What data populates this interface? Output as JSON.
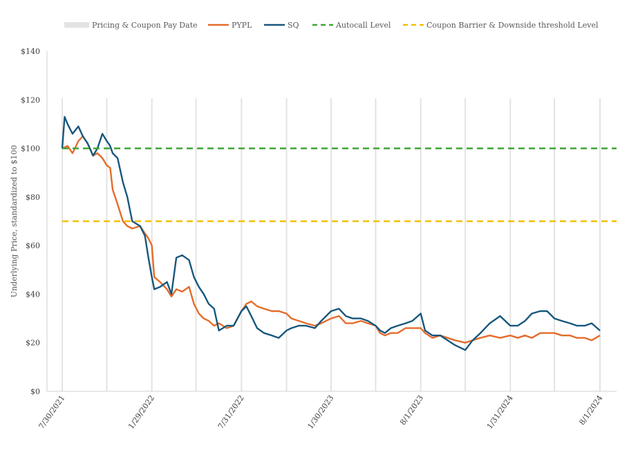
{
  "chart_data": {
    "type": "line",
    "ylabel": "Underlying Price, standardized to $100",
    "ylim": [
      0,
      140
    ],
    "y_ticks": [
      "$0",
      "$20",
      "$40",
      "$60",
      "$80",
      "$100",
      "$120",
      "$140"
    ],
    "x_tick_labels": [
      "7/30/2021",
      "1/29/2022",
      "7/31/2022",
      "1/30/2023",
      "8/1/2023",
      "1/31/2024",
      "8/1/2024"
    ],
    "pricing_coupon_dates": [
      "2021-07-30",
      "2021-10-29",
      "2022-01-29",
      "2022-04-29",
      "2022-07-31",
      "2022-10-31",
      "2023-01-30",
      "2023-05-01",
      "2023-08-01",
      "2023-10-31",
      "2024-01-31",
      "2024-04-30",
      "2024-08-01"
    ],
    "legend": [
      {
        "label": "Pricing & Coupon Pay Date",
        "color": "#e3e3e3",
        "style": "bar"
      },
      {
        "label": "PYPL",
        "color": "#e46c2b",
        "style": "solid"
      },
      {
        "label": "SQ",
        "color": "#17577d",
        "style": "solid"
      },
      {
        "label": "Autocall Level",
        "color": "#3fa535",
        "style": "dashed"
      },
      {
        "label": "Coupon Barrier & Downside threshold Level",
        "color": "#f2c000",
        "style": "dashed"
      }
    ],
    "levels": [
      {
        "name": "Autocall Level",
        "value": 100,
        "color": "#3fa535"
      },
      {
        "name": "Coupon Barrier & Downside threshold Level",
        "value": 70,
        "color": "#f2c000"
      }
    ],
    "series": [
      {
        "name": "PYPL",
        "color": "#e46c2b",
        "points": [
          [
            "2021-07-30",
            100
          ],
          [
            "2021-08-10",
            101
          ],
          [
            "2021-08-20",
            98
          ],
          [
            "2021-09-01",
            103
          ],
          [
            "2021-09-10",
            105
          ],
          [
            "2021-09-20",
            102
          ],
          [
            "2021-10-01",
            97
          ],
          [
            "2021-10-10",
            98
          ],
          [
            "2021-10-20",
            96
          ],
          [
            "2021-10-29",
            93
          ],
          [
            "2021-11-05",
            92
          ],
          [
            "2021-11-10",
            83
          ],
          [
            "2021-11-20",
            77
          ],
          [
            "2021-12-01",
            70
          ],
          [
            "2021-12-10",
            68
          ],
          [
            "2021-12-20",
            67
          ],
          [
            "2022-01-05",
            68
          ],
          [
            "2022-01-15",
            65
          ],
          [
            "2022-01-22",
            63
          ],
          [
            "2022-01-29",
            60
          ],
          [
            "2022-02-03",
            47
          ],
          [
            "2022-02-15",
            45
          ],
          [
            "2022-03-01",
            42
          ],
          [
            "2022-03-10",
            39
          ],
          [
            "2022-03-20",
            42
          ],
          [
            "2022-04-01",
            41
          ],
          [
            "2022-04-15",
            43
          ],
          [
            "2022-04-25",
            36
          ],
          [
            "2022-05-05",
            32
          ],
          [
            "2022-05-15",
            30
          ],
          [
            "2022-05-25",
            29
          ],
          [
            "2022-06-05",
            27
          ],
          [
            "2022-06-15",
            28
          ],
          [
            "2022-07-01",
            26
          ],
          [
            "2022-07-15",
            27
          ],
          [
            "2022-07-31",
            33
          ],
          [
            "2022-08-10",
            36
          ],
          [
            "2022-08-20",
            37
          ],
          [
            "2022-09-01",
            35
          ],
          [
            "2022-09-15",
            34
          ],
          [
            "2022-10-01",
            33
          ],
          [
            "2022-10-15",
            33
          ],
          [
            "2022-10-31",
            32
          ],
          [
            "2022-11-10",
            30
          ],
          [
            "2022-11-25",
            29
          ],
          [
            "2022-12-10",
            28
          ],
          [
            "2022-12-28",
            27
          ],
          [
            "2023-01-10",
            28
          ],
          [
            "2023-01-30",
            30
          ],
          [
            "2023-02-15",
            31
          ],
          [
            "2023-03-01",
            28
          ],
          [
            "2023-03-15",
            28
          ],
          [
            "2023-04-01",
            29
          ],
          [
            "2023-04-15",
            28
          ],
          [
            "2023-05-01",
            27
          ],
          [
            "2023-05-10",
            24
          ],
          [
            "2023-05-20",
            23
          ],
          [
            "2023-06-01",
            24
          ],
          [
            "2023-06-15",
            24
          ],
          [
            "2023-07-01",
            26
          ],
          [
            "2023-07-15",
            26
          ],
          [
            "2023-08-01",
            26
          ],
          [
            "2023-08-10",
            24
          ],
          [
            "2023-08-25",
            22
          ],
          [
            "2023-09-10",
            23
          ],
          [
            "2023-09-25",
            22
          ],
          [
            "2023-10-10",
            21
          ],
          [
            "2023-10-31",
            20
          ],
          [
            "2023-11-15",
            21
          ],
          [
            "2023-12-01",
            22
          ],
          [
            "2023-12-20",
            23
          ],
          [
            "2024-01-10",
            22
          ],
          [
            "2024-01-31",
            23
          ],
          [
            "2024-02-15",
            22
          ],
          [
            "2024-03-01",
            23
          ],
          [
            "2024-03-15",
            22
          ],
          [
            "2024-04-01",
            24
          ],
          [
            "2024-04-15",
            24
          ],
          [
            "2024-04-30",
            24
          ],
          [
            "2024-05-15",
            23
          ],
          [
            "2024-06-01",
            23
          ],
          [
            "2024-06-15",
            22
          ],
          [
            "2024-07-01",
            22
          ],
          [
            "2024-07-15",
            21
          ],
          [
            "2024-08-01",
            23
          ]
        ]
      },
      {
        "name": "SQ",
        "color": "#17577d",
        "points": [
          [
            "2021-07-30",
            100
          ],
          [
            "2021-08-04",
            113
          ],
          [
            "2021-08-10",
            110
          ],
          [
            "2021-08-20",
            106
          ],
          [
            "2021-09-01",
            109
          ],
          [
            "2021-09-10",
            105
          ],
          [
            "2021-09-20",
            102
          ],
          [
            "2021-10-01",
            97
          ],
          [
            "2021-10-10",
            100
          ],
          [
            "2021-10-20",
            106
          ],
          [
            "2021-10-29",
            103
          ],
          [
            "2021-11-05",
            101
          ],
          [
            "2021-11-10",
            98
          ],
          [
            "2021-11-20",
            96
          ],
          [
            "2021-12-01",
            86
          ],
          [
            "2021-12-10",
            80
          ],
          [
            "2021-12-20",
            70
          ],
          [
            "2022-01-05",
            68
          ],
          [
            "2022-01-15",
            64
          ],
          [
            "2022-01-22",
            55
          ],
          [
            "2022-01-29",
            47
          ],
          [
            "2022-02-03",
            42
          ],
          [
            "2022-02-15",
            43
          ],
          [
            "2022-03-01",
            45
          ],
          [
            "2022-03-10",
            40
          ],
          [
            "2022-03-20",
            55
          ],
          [
            "2022-04-01",
            56
          ],
          [
            "2022-04-15",
            54
          ],
          [
            "2022-04-25",
            47
          ],
          [
            "2022-05-05",
            43
          ],
          [
            "2022-05-15",
            40
          ],
          [
            "2022-05-25",
            36
          ],
          [
            "2022-06-05",
            34
          ],
          [
            "2022-06-15",
            25
          ],
          [
            "2022-07-01",
            27
          ],
          [
            "2022-07-15",
            27
          ],
          [
            "2022-07-31",
            33
          ],
          [
            "2022-08-10",
            35
          ],
          [
            "2022-08-20",
            31
          ],
          [
            "2022-09-01",
            26
          ],
          [
            "2022-09-15",
            24
          ],
          [
            "2022-10-01",
            23
          ],
          [
            "2022-10-15",
            22
          ],
          [
            "2022-10-31",
            25
          ],
          [
            "2022-11-10",
            26
          ],
          [
            "2022-11-25",
            27
          ],
          [
            "2022-12-10",
            27
          ],
          [
            "2022-12-28",
            26
          ],
          [
            "2023-01-10",
            29
          ],
          [
            "2023-01-30",
            33
          ],
          [
            "2023-02-15",
            34
          ],
          [
            "2023-03-01",
            31
          ],
          [
            "2023-03-15",
            30
          ],
          [
            "2023-04-01",
            30
          ],
          [
            "2023-04-15",
            29
          ],
          [
            "2023-05-01",
            27
          ],
          [
            "2023-05-10",
            25
          ],
          [
            "2023-05-20",
            24
          ],
          [
            "2023-06-01",
            26
          ],
          [
            "2023-06-15",
            27
          ],
          [
            "2023-07-01",
            28
          ],
          [
            "2023-07-15",
            29
          ],
          [
            "2023-08-01",
            32
          ],
          [
            "2023-08-10",
            25
          ],
          [
            "2023-08-25",
            23
          ],
          [
            "2023-09-10",
            23
          ],
          [
            "2023-09-25",
            21
          ],
          [
            "2023-10-10",
            19
          ],
          [
            "2023-10-31",
            17
          ],
          [
            "2023-11-15",
            21
          ],
          [
            "2023-12-01",
            24
          ],
          [
            "2023-12-20",
            28
          ],
          [
            "2024-01-10",
            31
          ],
          [
            "2024-01-31",
            27
          ],
          [
            "2024-02-15",
            27
          ],
          [
            "2024-03-01",
            29
          ],
          [
            "2024-03-15",
            32
          ],
          [
            "2024-04-01",
            33
          ],
          [
            "2024-04-15",
            33
          ],
          [
            "2024-04-30",
            30
          ],
          [
            "2024-05-15",
            29
          ],
          [
            "2024-06-01",
            28
          ],
          [
            "2024-06-15",
            27
          ],
          [
            "2024-07-01",
            27
          ],
          [
            "2024-07-15",
            28
          ],
          [
            "2024-08-01",
            25
          ]
        ]
      }
    ]
  }
}
